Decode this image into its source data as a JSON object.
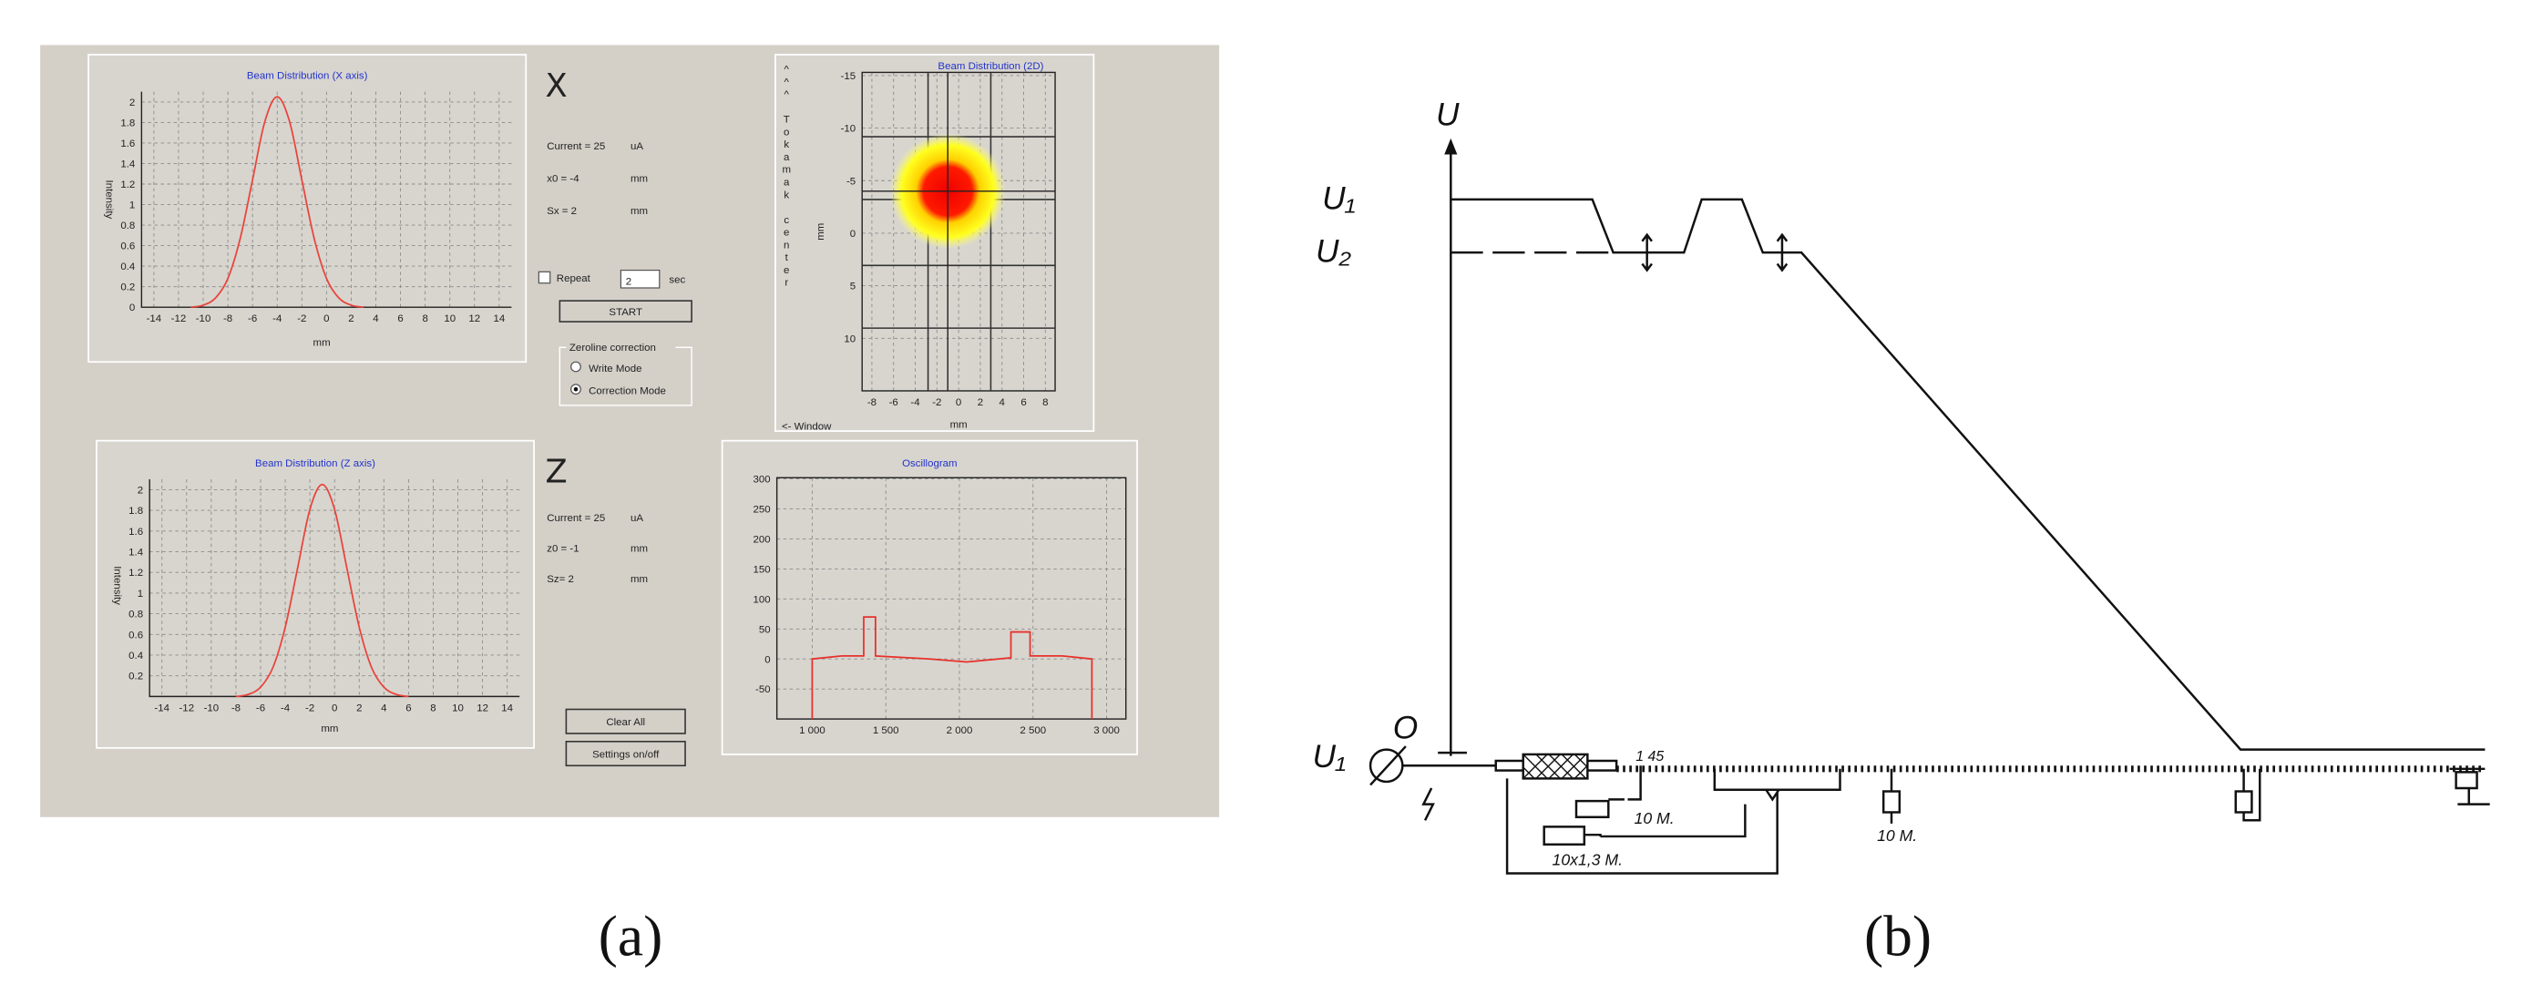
{
  "panel_a": {
    "label": "(a)",
    "x_profile": {
      "title": "Beam Distribution (X axis)",
      "y_label": "Intensity",
      "x_label": "mm",
      "xlim": [
        -15,
        15
      ],
      "xticks": [
        -14,
        -12,
        -10,
        -8,
        -6,
        -4,
        -2,
        0,
        2,
        4,
        6,
        8,
        10,
        12,
        14
      ],
      "ylim": [
        0,
        2.1
      ],
      "yticks": [
        0,
        0.2,
        0.4,
        0.6,
        0.8,
        1,
        1.2,
        1.4,
        1.6,
        1.8,
        2
      ],
      "x": [
        -11,
        -10,
        -9,
        -8,
        -7,
        -6,
        -5,
        -4,
        -3,
        -2,
        -1,
        0,
        1,
        2,
        3
      ],
      "values": [
        0,
        0.02,
        0.09,
        0.28,
        0.67,
        1.24,
        1.81,
        2.05,
        1.81,
        1.24,
        0.67,
        0.28,
        0.09,
        0.02,
        0
      ],
      "color": "#e8453c"
    },
    "x_info": {
      "heading": "X",
      "current": "Current = 25",
      "current_unit": "uA",
      "center": "x0 = -4",
      "center_unit": "mm",
      "width": "Sx = 2",
      "width_unit": "mm"
    },
    "controls": {
      "repeat": "Repeat",
      "interval": "2",
      "interval_unit": "sec",
      "start": "START",
      "zeroline_group": "Zeroline correction",
      "write_mode": "Write Mode",
      "correction_mode": "Correction Mode",
      "clear_all": "Clear All",
      "settings": "Settings on/off"
    },
    "beam_2d": {
      "title": "Beam Distribution (2D)",
      "side_label": "^^^ Tokamak center",
      "window_label": "<- Window",
      "x_label": "mm",
      "y_label": "mm",
      "xlim": [
        -8.9,
        8.9
      ],
      "xticks": [
        -8,
        -6,
        -4,
        -2,
        0,
        2,
        4,
        6,
        8
      ],
      "ylim": [
        15,
        -15.3
      ],
      "yticks": [
        -15,
        -10,
        -5,
        0,
        5,
        10
      ],
      "spot": {
        "x": -1,
        "y": -4
      }
    },
    "z_profile": {
      "title": "Beam Distribution (Z axis)",
      "y_label": "Intensity",
      "x_label": "mm",
      "xlim": [
        -15,
        15
      ],
      "xticks": [
        -14,
        -12,
        -10,
        -8,
        -6,
        -4,
        -2,
        0,
        2,
        4,
        6,
        8,
        10,
        12,
        14
      ],
      "ylim": [
        0,
        2.1
      ],
      "yticks": [
        0.2,
        0.4,
        0.6,
        0.8,
        1,
        1.2,
        1.4,
        1.6,
        1.8,
        2
      ],
      "x": [
        -8,
        -7,
        -6,
        -5,
        -4,
        -3,
        -2,
        -1,
        0,
        1,
        2,
        3,
        4,
        5,
        6
      ],
      "values": [
        0,
        0.02,
        0.09,
        0.28,
        0.67,
        1.24,
        1.81,
        2.05,
        1.81,
        1.24,
        0.67,
        0.28,
        0.09,
        0.02,
        0
      ],
      "color": "#e8453c"
    },
    "z_info": {
      "heading": "Z",
      "current": "Current = 25",
      "current_unit": "uA",
      "center": "z0 = -1",
      "center_unit": "mm",
      "width": "Sz= 2",
      "width_unit": "mm"
    },
    "oscillogram": {
      "title": "Oscillogram",
      "xlim": [
        760,
        3131
      ],
      "xticks": [
        {
          "value": 1000,
          "label": "1 000"
        },
        {
          "value": 1500,
          "label": "1 500"
        },
        {
          "value": 2000,
          "label": "2 000"
        },
        {
          "value": 2500,
          "label": "2 500"
        },
        {
          "value": 3000,
          "label": "3 000"
        }
      ],
      "ylim": [
        -100,
        302
      ],
      "yticks": [
        300,
        250,
        200,
        150,
        100,
        50,
        0,
        -50
      ],
      "x": [
        1000,
        1000,
        1200,
        1350,
        1350,
        1430,
        1430,
        1800,
        2050,
        2350,
        2350,
        2480,
        2480,
        2700,
        2900,
        2900
      ],
      "values": [
        -100,
        0,
        5,
        5,
        70,
        70,
        5,
        0,
        -5,
        2,
        45,
        45,
        5,
        5,
        0,
        -100
      ],
      "color": "#e8312a"
    }
  },
  "panel_b": {
    "label": "(b)",
    "axis_label": "U",
    "level_1": "U₁",
    "level_2": "U₂",
    "origin": "O",
    "source": "U₁",
    "stage_numbers": "1  45",
    "resistor_1": "10 M.",
    "resistor_2": "10x1,3 M.",
    "resistor_3": "10 M."
  }
}
